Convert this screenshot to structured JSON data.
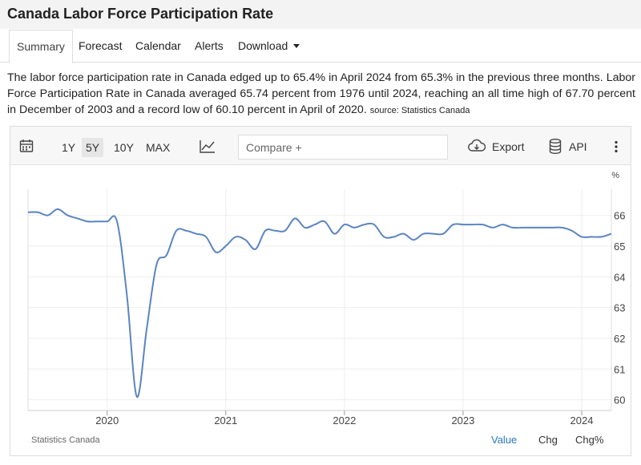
{
  "header": {
    "title": "Canada Labor Force Participation Rate"
  },
  "tabs": [
    {
      "label": "Summary"
    },
    {
      "label": "Forecast"
    },
    {
      "label": "Calendar"
    },
    {
      "label": "Alerts"
    },
    {
      "label": "Download"
    }
  ],
  "description": {
    "text": "The labor force participation rate in Canada edged up to 65.4% in April 2024 from 65.3% in the previous three months. Labor Force Participation Rate in Canada averaged 65.74 percent from 1976 until 2024, reaching an all time high of 67.70 percent in December of 2003 and a record low of 60.10 percent in April of 2020.",
    "source": "source: Statistics Canada"
  },
  "toolbar": {
    "ranges": [
      "1Y",
      "5Y",
      "10Y",
      "MAX"
    ],
    "active_range": "5Y",
    "compare_placeholder": "Compare +",
    "export_label": "Export",
    "api_label": "API"
  },
  "footer": {
    "source": "Statistics Canada",
    "tabs": [
      "Value",
      "Chg",
      "Chg%"
    ],
    "active_tab": "Value"
  },
  "colors": {
    "line": "#5b84c0",
    "active_tab": "#2a7ac0",
    "grid": "#eeeeee"
  },
  "chart_data": {
    "type": "line",
    "ylabel": "%",
    "ylim": [
      59.65,
      66.85
    ],
    "yticks": [
      60,
      61,
      62,
      63,
      64,
      65,
      66
    ],
    "xlim": [
      "2019-05",
      "2024-04"
    ],
    "xticks": [
      "2020",
      "2021",
      "2022",
      "2023",
      "2024"
    ],
    "x": [
      "2019-05",
      "2019-06",
      "2019-07",
      "2019-08",
      "2019-09",
      "2019-10",
      "2019-11",
      "2019-12",
      "2020-01",
      "2020-02",
      "2020-03",
      "2020-04",
      "2020-05",
      "2020-06",
      "2020-07",
      "2020-08",
      "2020-09",
      "2020-10",
      "2020-11",
      "2020-12",
      "2021-01",
      "2021-02",
      "2021-03",
      "2021-04",
      "2021-05",
      "2021-06",
      "2021-07",
      "2021-08",
      "2021-09",
      "2021-10",
      "2021-11",
      "2021-12",
      "2022-01",
      "2022-02",
      "2022-03",
      "2022-04",
      "2022-05",
      "2022-06",
      "2022-07",
      "2022-08",
      "2022-09",
      "2022-10",
      "2022-11",
      "2022-12",
      "2023-01",
      "2023-02",
      "2023-03",
      "2023-04",
      "2023-05",
      "2023-06",
      "2023-07",
      "2023-08",
      "2023-09",
      "2023-10",
      "2023-11",
      "2023-12",
      "2024-01",
      "2024-02",
      "2024-03",
      "2024-04"
    ],
    "series": [
      {
        "values": [
          66.1,
          66.1,
          66.0,
          66.2,
          66.0,
          65.9,
          65.8,
          65.8,
          65.8,
          65.8,
          63.4,
          60.1,
          62.3,
          64.4,
          64.7,
          65.5,
          65.5,
          65.4,
          65.3,
          64.8,
          65.0,
          65.3,
          65.2,
          64.9,
          65.5,
          65.5,
          65.5,
          65.9,
          65.6,
          65.7,
          65.8,
          65.4,
          65.7,
          65.6,
          65.7,
          65.7,
          65.3,
          65.3,
          65.4,
          65.2,
          65.4,
          65.4,
          65.4,
          65.7,
          65.7,
          65.7,
          65.7,
          65.6,
          65.7,
          65.6,
          65.6,
          65.6,
          65.6,
          65.6,
          65.6,
          65.5,
          65.3,
          65.3,
          65.3,
          65.4
        ]
      }
    ]
  }
}
